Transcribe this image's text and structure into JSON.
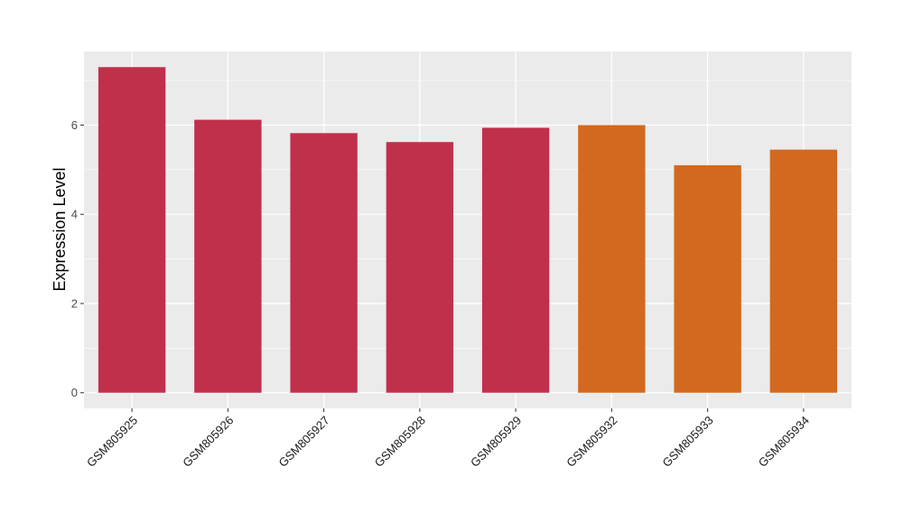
{
  "chart_data": {
    "type": "bar",
    "categories": [
      "GSM805925",
      "GSM805926",
      "GSM805927",
      "GSM805928",
      "GSM805929",
      "GSM805932",
      "GSM805933",
      "GSM805934"
    ],
    "values": [
      7.3,
      6.12,
      5.82,
      5.62,
      5.94,
      6.0,
      5.1,
      5.45
    ],
    "bar_colors": [
      "#c0304a",
      "#c0304a",
      "#c0304a",
      "#c0304a",
      "#c0304a",
      "#d2691e",
      "#d2691e",
      "#d2691e"
    ],
    "ylabel": "Expression Level",
    "xlabel": "",
    "title": "",
    "ylim": [
      -0.35,
      7.65
    ],
    "yticks": [
      0,
      2,
      4,
      6
    ],
    "grid": true,
    "panel_color": "#ebebeb",
    "grid_color": "#ffffff"
  }
}
